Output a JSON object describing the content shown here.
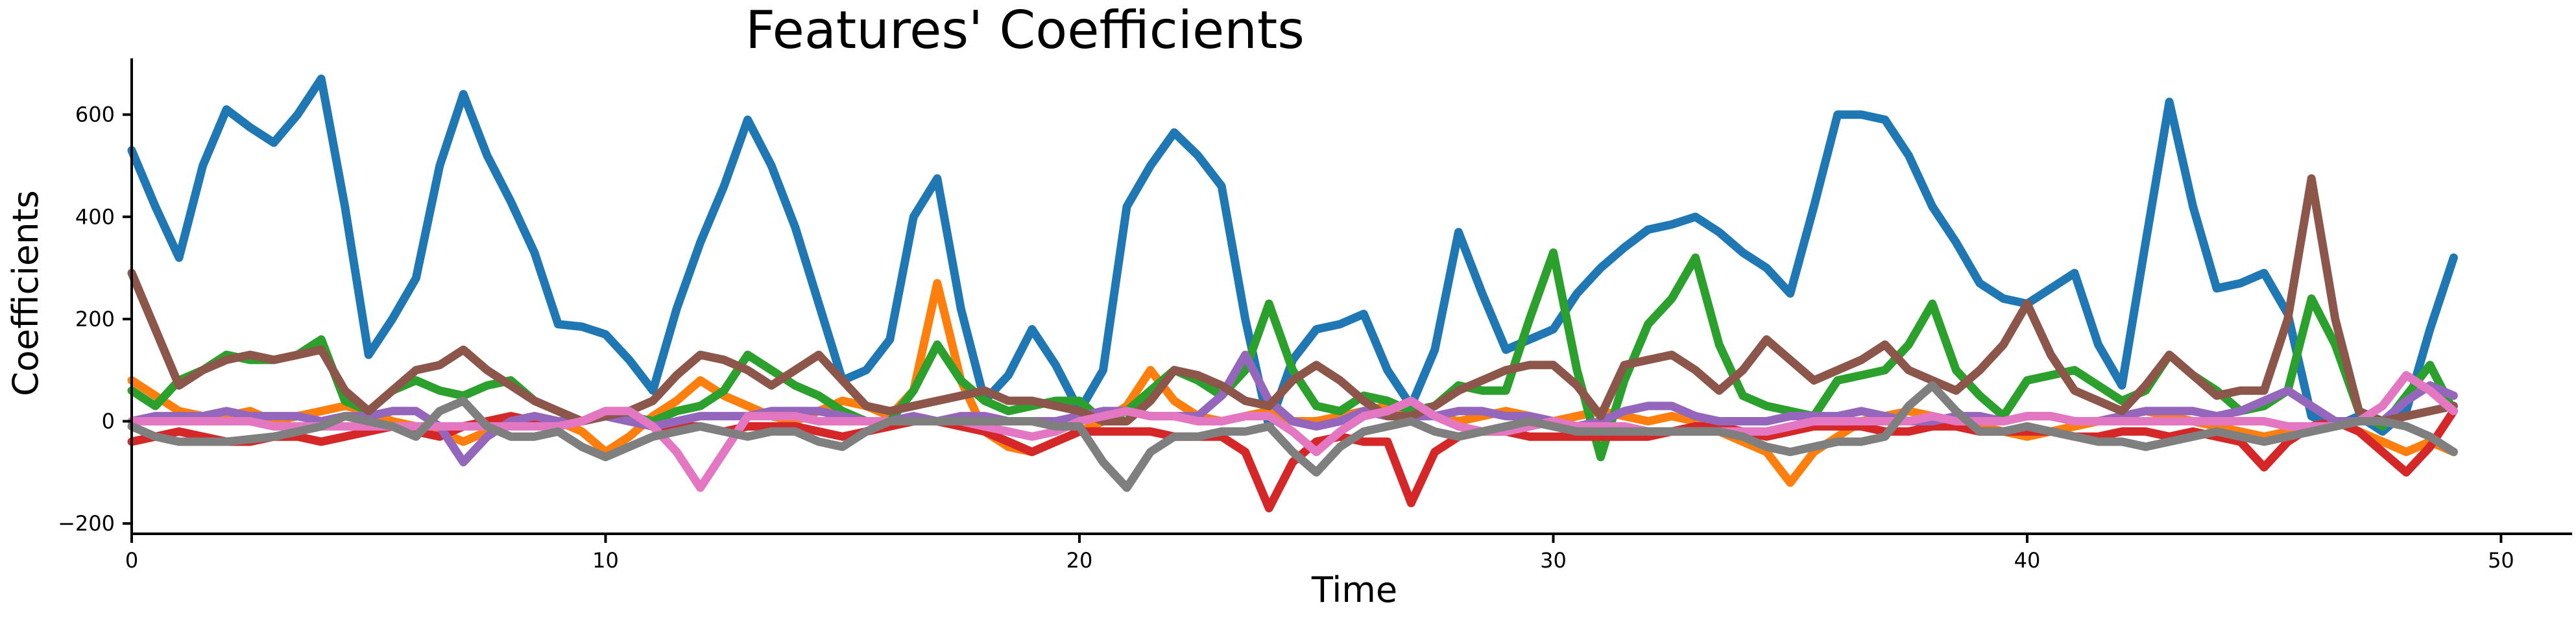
{
  "chart_data": {
    "type": "line",
    "title": "Features' Coefficients",
    "xlabel": "Time",
    "ylabel": "Coefficients",
    "xlim": [
      0,
      51.5
    ],
    "ylim": [
      -210,
      710
    ],
    "xticks": [
      0,
      10,
      20,
      30,
      40,
      50
    ],
    "yticks": [
      -200,
      0,
      200,
      400,
      600
    ],
    "grid": false,
    "legend": "none",
    "x": [
      0,
      0.5,
      1,
      1.5,
      2,
      2.5,
      3,
      3.5,
      4,
      4.5,
      5,
      5.5,
      6,
      6.5,
      7,
      7.5,
      8,
      8.5,
      9,
      9.5,
      10,
      10.5,
      11,
      11.5,
      12,
      12.5,
      13,
      13.5,
      14,
      14.5,
      15,
      15.5,
      16,
      16.5,
      17,
      17.5,
      18,
      18.5,
      19,
      19.5,
      20,
      20.5,
      21,
      21.5,
      22,
      22.5,
      23,
      23.5,
      24,
      24.5,
      25,
      25.5,
      26,
      26.5,
      27,
      27.5,
      28,
      28.5,
      29,
      29.5,
      30,
      30.5,
      31,
      31.5,
      32,
      32.5,
      33,
      33.5,
      34,
      34.5,
      35,
      35.5,
      36,
      36.5,
      37,
      37.5,
      38,
      38.5,
      39,
      39.5,
      40,
      40.5,
      41,
      41.5,
      42,
      42.5,
      43,
      43.5,
      44,
      44.5,
      45,
      45.5,
      46,
      46.5,
      47,
      47.5,
      48,
      48.5,
      49
    ],
    "series": [
      {
        "color": "#1f77b4",
        "values": [
          530,
          420,
          320,
          500,
          610,
          575,
          545,
          600,
          670,
          420,
          130,
          200,
          280,
          500,
          640,
          520,
          430,
          330,
          190,
          185,
          170,
          120,
          60,
          220,
          350,
          460,
          590,
          500,
          380,
          230,
          80,
          100,
          160,
          400,
          475,
          220,
          40,
          90,
          180,
          110,
          20,
          100,
          420,
          500,
          565,
          520,
          460,
          200,
          -10,
          120,
          180,
          190,
          210,
          100,
          30,
          140,
          370,
          250,
          140,
          160,
          180,
          250,
          300,
          340,
          375,
          385,
          400,
          370,
          330,
          300,
          250,
          420,
          600,
          600,
          590,
          520,
          420,
          350,
          270,
          240,
          230,
          260,
          290,
          150,
          70,
          350,
          625,
          420,
          260,
          270,
          290,
          210,
          10,
          -10,
          10,
          -20,
          20,
          180,
          320
        ]
      },
      {
        "color": "#ff7f0e",
        "values": [
          80,
          50,
          20,
          10,
          10,
          20,
          0,
          10,
          20,
          30,
          20,
          0,
          -10,
          -20,
          -40,
          -20,
          0,
          10,
          0,
          -20,
          -60,
          -30,
          10,
          40,
          80,
          50,
          30,
          10,
          0,
          20,
          40,
          30,
          10,
          60,
          270,
          80,
          -20,
          -50,
          -60,
          -40,
          -20,
          0,
          30,
          100,
          40,
          10,
          0,
          10,
          20,
          0,
          0,
          10,
          20,
          30,
          20,
          10,
          0,
          10,
          20,
          10,
          0,
          10,
          20,
          10,
          0,
          10,
          0,
          -20,
          -40,
          -60,
          -120,
          -60,
          -30,
          0,
          10,
          20,
          10,
          0,
          -10,
          -20,
          -30,
          -20,
          -10,
          0,
          10,
          20,
          10,
          0,
          -10,
          -20,
          -30,
          -20,
          -10,
          0,
          -20,
          -40,
          -60,
          -40,
          -60
        ]
      },
      {
        "color": "#2ca02c",
        "values": [
          60,
          30,
          80,
          100,
          130,
          120,
          120,
          130,
          160,
          40,
          20,
          60,
          80,
          60,
          50,
          70,
          80,
          40,
          20,
          0,
          20,
          10,
          0,
          20,
          30,
          60,
          130,
          100,
          70,
          50,
          20,
          0,
          0,
          60,
          150,
          80,
          40,
          20,
          30,
          40,
          40,
          0,
          20,
          60,
          100,
          80,
          50,
          100,
          230,
          100,
          30,
          20,
          50,
          40,
          20,
          30,
          70,
          60,
          60,
          200,
          330,
          100,
          -70,
          80,
          190,
          240,
          320,
          150,
          50,
          30,
          20,
          10,
          80,
          90,
          100,
          150,
          230,
          100,
          50,
          10,
          80,
          90,
          100,
          70,
          40,
          60,
          130,
          90,
          60,
          20,
          30,
          60,
          240,
          150,
          20,
          -10,
          50,
          110,
          20
        ]
      },
      {
        "color": "#d62728",
        "values": [
          -40,
          -30,
          -20,
          -30,
          -40,
          -40,
          -30,
          -30,
          -40,
          -30,
          -20,
          -10,
          -20,
          -30,
          -10,
          0,
          10,
          0,
          -10,
          0,
          10,
          0,
          -10,
          -10,
          -10,
          -20,
          -10,
          -10,
          -10,
          -20,
          -30,
          -20,
          -10,
          0,
          0,
          -10,
          -20,
          -40,
          -60,
          -40,
          -20,
          -20,
          -20,
          -20,
          -30,
          -30,
          -30,
          -60,
          -170,
          -80,
          -40,
          -30,
          -40,
          -40,
          -160,
          -60,
          -30,
          -20,
          -20,
          -30,
          -30,
          -30,
          -30,
          -30,
          -30,
          -20,
          -10,
          -10,
          -20,
          -30,
          -20,
          -10,
          -10,
          -10,
          -20,
          -20,
          -10,
          -10,
          -20,
          -20,
          -20,
          -20,
          -30,
          -30,
          -20,
          -20,
          -30,
          -20,
          -30,
          -40,
          -90,
          -40,
          -10,
          0,
          -20,
          -60,
          -100,
          -50,
          20
        ]
      },
      {
        "color": "#9467bd",
        "values": [
          0,
          10,
          10,
          10,
          20,
          10,
          10,
          10,
          0,
          10,
          10,
          20,
          20,
          -10,
          -80,
          -30,
          0,
          10,
          0,
          0,
          10,
          0,
          -10,
          0,
          10,
          10,
          10,
          20,
          20,
          20,
          10,
          0,
          0,
          10,
          0,
          10,
          10,
          0,
          0,
          0,
          10,
          20,
          20,
          10,
          10,
          10,
          50,
          130,
          40,
          0,
          -10,
          0,
          20,
          10,
          10,
          10,
          20,
          20,
          10,
          10,
          0,
          -10,
          0,
          20,
          30,
          30,
          10,
          0,
          0,
          0,
          10,
          10,
          10,
          20,
          10,
          0,
          0,
          10,
          10,
          0,
          10,
          10,
          0,
          0,
          10,
          20,
          20,
          20,
          10,
          20,
          40,
          60,
          30,
          0,
          0,
          0,
          40,
          70,
          50
        ]
      },
      {
        "color": "#8c564b",
        "values": [
          290,
          180,
          70,
          100,
          120,
          130,
          120,
          130,
          140,
          60,
          20,
          60,
          100,
          110,
          140,
          100,
          70,
          40,
          20,
          0,
          10,
          20,
          40,
          90,
          130,
          120,
          100,
          70,
          100,
          130,
          80,
          30,
          20,
          30,
          40,
          50,
          60,
          40,
          40,
          30,
          20,
          0,
          0,
          40,
          100,
          90,
          70,
          40,
          30,
          80,
          110,
          80,
          40,
          10,
          10,
          30,
          60,
          80,
          100,
          110,
          110,
          70,
          10,
          110,
          120,
          130,
          100,
          60,
          100,
          160,
          120,
          80,
          100,
          120,
          150,
          100,
          80,
          60,
          100,
          150,
          230,
          130,
          60,
          40,
          20,
          70,
          130,
          90,
          50,
          60,
          60,
          200,
          475,
          200,
          20,
          0,
          10,
          20,
          30
        ]
      },
      {
        "color": "#e377c2",
        "values": [
          0,
          0,
          0,
          0,
          0,
          0,
          -10,
          -10,
          -10,
          -10,
          -10,
          -10,
          -10,
          -10,
          -10,
          -10,
          -10,
          -10,
          -10,
          0,
          20,
          20,
          -10,
          -60,
          -130,
          -60,
          10,
          10,
          10,
          0,
          0,
          0,
          0,
          0,
          0,
          0,
          -10,
          -20,
          -30,
          -20,
          0,
          10,
          20,
          10,
          10,
          0,
          0,
          10,
          10,
          -20,
          -60,
          -20,
          10,
          20,
          40,
          10,
          -10,
          -20,
          -20,
          -10,
          0,
          -10,
          -10,
          -10,
          -20,
          -20,
          -20,
          -20,
          -20,
          -20,
          -10,
          0,
          0,
          0,
          0,
          0,
          10,
          0,
          0,
          0,
          10,
          10,
          0,
          0,
          0,
          0,
          0,
          0,
          0,
          0,
          0,
          -10,
          -10,
          -10,
          0,
          30,
          90,
          60,
          20
        ]
      },
      {
        "color": "#7f7f7f",
        "values": [
          -10,
          -30,
          -40,
          -40,
          -40,
          -35,
          -30,
          -20,
          -10,
          10,
          0,
          -10,
          -30,
          20,
          40,
          -10,
          -30,
          -30,
          -20,
          -50,
          -70,
          -50,
          -30,
          -20,
          -10,
          -20,
          -30,
          -20,
          -20,
          -40,
          -50,
          -20,
          0,
          0,
          0,
          0,
          0,
          0,
          0,
          -10,
          -10,
          -80,
          -130,
          -60,
          -30,
          -30,
          -20,
          -20,
          -10,
          -60,
          -100,
          -50,
          -20,
          -10,
          0,
          -20,
          -30,
          -20,
          -10,
          0,
          -10,
          -20,
          -20,
          -20,
          -20,
          -20,
          -20,
          -20,
          -30,
          -50,
          -60,
          -50,
          -40,
          -40,
          -30,
          30,
          70,
          20,
          -20,
          -20,
          -10,
          -20,
          -30,
          -40,
          -40,
          -50,
          -40,
          -30,
          -20,
          -30,
          -40,
          -30,
          -20,
          -10,
          0,
          0,
          -10,
          -30,
          -60
        ]
      }
    ]
  }
}
